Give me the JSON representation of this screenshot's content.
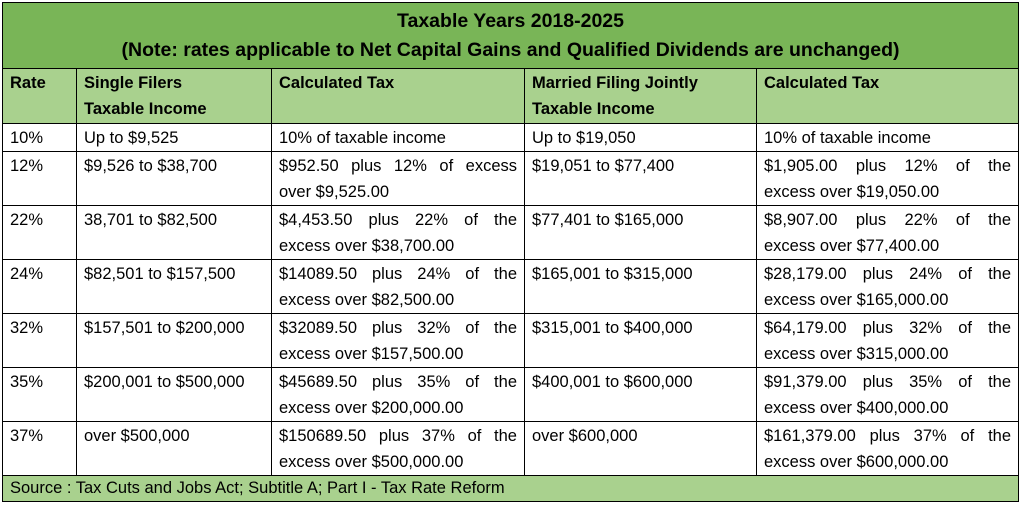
{
  "title": "Taxable Years 2018-2025",
  "note": "(Note: rates applicable to Net Capital Gains and Qualified Dividends are unchanged)",
  "headers": {
    "rate": "Rate",
    "single_line1": "Single Filers",
    "single_line2": "Taxable Income",
    "single_tax": "Calculated Tax",
    "married_line1": "Married Filing Jointly",
    "married_line2": "Taxable Income",
    "married_tax": "Calculated Tax"
  },
  "rows": [
    {
      "rate": "10%",
      "single_income": "Up to $9,525",
      "single_tax": "10% of taxable income",
      "married_income": "Up to $19,050",
      "married_tax": "10% of taxable income"
    },
    {
      "rate": "12%",
      "single_income": "$9,526 to $38,700",
      "single_tax": "$952.50 plus 12% of excess over $9,525.00",
      "married_income": "$19,051 to $77,400",
      "married_tax": "$1,905.00 plus 12% of the excess over $19,050.00"
    },
    {
      "rate": "22%",
      "single_income": "38,701 to $82,500",
      "single_tax": "$4,453.50 plus 22% of the excess over $38,700.00",
      "married_income": "$77,401 to $165,000",
      "married_tax": "$8,907.00 plus 22% of the excess over $77,400.00"
    },
    {
      "rate": "24%",
      "single_income": "$82,501 to $157,500",
      "single_tax": "$14089.50 plus 24% of the excess over $82,500.00",
      "married_income": "$165,001 to $315,000",
      "married_tax": "$28,179.00 plus 24% of the excess over $165,000.00"
    },
    {
      "rate": "32%",
      "single_income": "$157,501 to $200,000",
      "single_tax": "$32089.50 plus 32% of the excess over $157,500.00",
      "married_income": "$315,001 to $400,000",
      "married_tax": "$64,179.00 plus 32% of the excess over $315,000.00"
    },
    {
      "rate": "35%",
      "single_income": "$200,001 to $500,000",
      "single_tax": "$45689.50 plus 35% of the excess over $200,000.00",
      "married_income": "$400,001 to $600,000",
      "married_tax": "$91,379.00 plus 35% of the excess over $400,000.00"
    },
    {
      "rate": "37%",
      "single_income": "over $500,000",
      "single_tax": "$150689.50 plus 37% of the excess over $500,000.00",
      "married_income": "over $600,000",
      "married_tax": "$161,379.00 plus 37% of the excess over $600,000.00"
    }
  ],
  "source": "Source : Tax Cuts and Jobs Act; Subtitle A; Part I - Tax Rate Reform",
  "colors": {
    "title_bg": "#79b557",
    "header_bg": "#a9d18e",
    "border": "#000000"
  }
}
